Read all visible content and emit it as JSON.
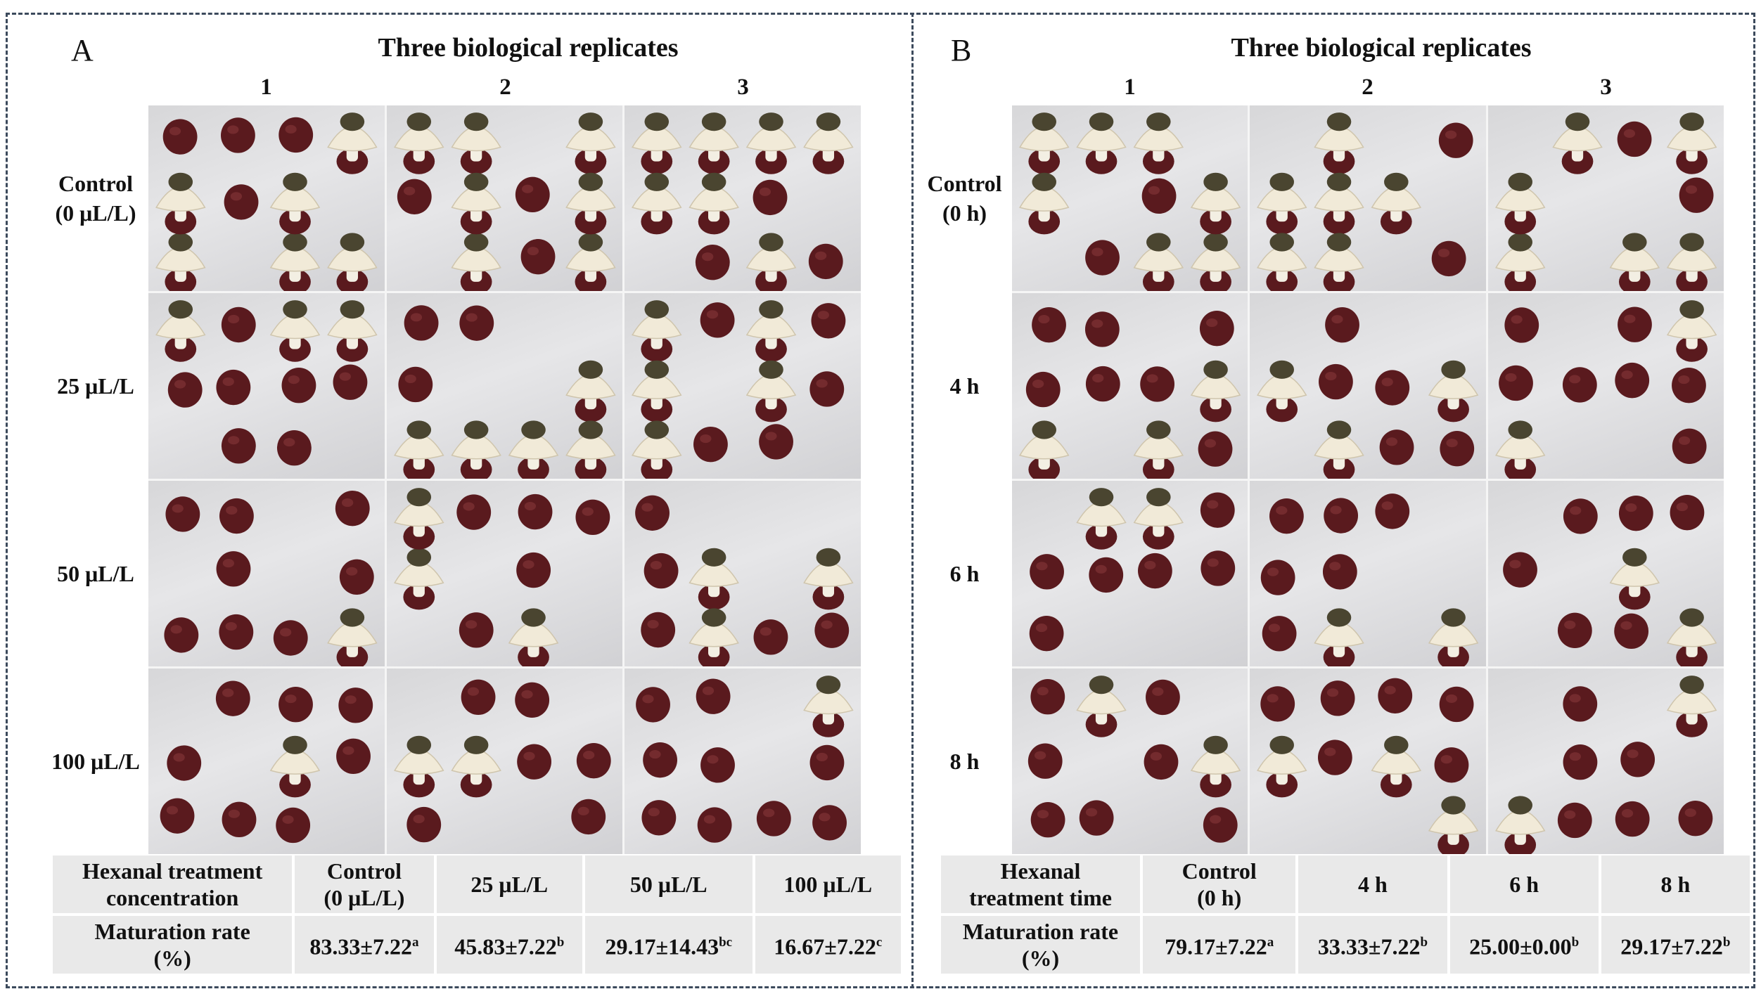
{
  "panel_a": {
    "letter": "A",
    "heading": "Three biological replicates",
    "replicates": [
      "1",
      "2",
      "3"
    ],
    "row_labels": [
      {
        "line1": "Control",
        "line2": "(0 μL/L)"
      },
      {
        "line1": "25 μL/L",
        "line2": ""
      },
      {
        "line1": "50 μL/L",
        "line2": ""
      },
      {
        "line1": "100 μL/L",
        "line2": ""
      }
    ],
    "table": {
      "header_label_line1": "Hexanal treatment",
      "header_label_line2": "concentration",
      "headers": [
        {
          "line1": "Control",
          "line2": "(0 μL/L)"
        },
        {
          "line1": "25 μL/L",
          "line2": ""
        },
        {
          "line1": "50 μL/L",
          "line2": ""
        },
        {
          "line1": "100 μL/L",
          "line2": ""
        }
      ],
      "rate_label_line1": "Maturation rate",
      "rate_label_line2": "(%)",
      "values": [
        {
          "value": "83.33±7.22",
          "letter": "a"
        },
        {
          "value": "45.83±7.22",
          "letter": "b"
        },
        {
          "value": "29.17±14.43",
          "letter": "bc"
        },
        {
          "value": "16.67±7.22",
          "letter": "c"
        }
      ]
    }
  },
  "panel_b": {
    "letter": "B",
    "heading": "Three biological replicates",
    "replicates": [
      "1",
      "2",
      "3"
    ],
    "row_labels": [
      {
        "line1": "Control",
        "line2": "(0 h)"
      },
      {
        "line1": "4 h",
        "line2": ""
      },
      {
        "line1": "6 h",
        "line2": ""
      },
      {
        "line1": "8 h",
        "line2": ""
      }
    ],
    "table": {
      "header_label_line1": "Hexanal",
      "header_label_line2": "treatment time",
      "headers": [
        {
          "line1": "Control",
          "line2": "(0 h)"
        },
        {
          "line1": "4 h",
          "line2": ""
        },
        {
          "line1": "6 h",
          "line2": ""
        },
        {
          "line1": "8 h",
          "line2": ""
        }
      ],
      "rate_label_line1": "Maturation rate",
      "rate_label_line2": "(%)",
      "values": [
        {
          "value": "79.17±7.22",
          "letter": "a"
        },
        {
          "value": "33.33±7.22",
          "letter": "b"
        },
        {
          "value": "25.00±0.00",
          "letter": "b"
        },
        {
          "value": "29.17±7.22",
          "letter": "b"
        }
      ]
    }
  },
  "photo_grid": {
    "description_icons": [
      "egg-icon",
      "mushroom-icon"
    ],
    "colors": {
      "egg": "#5a1a1e",
      "egg_highlight": "#8a3a3c",
      "cap": "#4a4530",
      "veil": "#f1ead8",
      "stem": "#f3efe3",
      "background": "#dcdcde"
    },
    "panel_a_counts": [
      [
        {
          "eggs": 4,
          "mushrooms": 6
        },
        {
          "eggs": 3,
          "mushrooms": 7
        },
        {
          "eggs": 3,
          "mushrooms": 7
        }
      ],
      [
        {
          "eggs": 7,
          "mushrooms": 3
        },
        {
          "eggs": 3,
          "mushrooms": 5
        },
        {
          "eggs": 5,
          "mushrooms": 5
        }
      ],
      [
        {
          "eggs": 8,
          "mushrooms": 1
        },
        {
          "eggs": 5,
          "mushrooms": 3
        },
        {
          "eggs": 5,
          "mushrooms": 3
        }
      ],
      [
        {
          "eggs": 8,
          "mushrooms": 1
        },
        {
          "eggs": 6,
          "mushrooms": 2
        },
        {
          "eggs": 9,
          "mushrooms": 1
        }
      ]
    ],
    "panel_b_counts": [
      [
        {
          "eggs": 2,
          "mushrooms": 7
        },
        {
          "eggs": 2,
          "mushrooms": 6
        },
        {
          "eggs": 2,
          "mushrooms": 6
        }
      ],
      [
        {
          "eggs": 7,
          "mushrooms": 3
        },
        {
          "eggs": 5,
          "mushrooms": 3
        },
        {
          "eggs": 7,
          "mushrooms": 2
        }
      ],
      [
        {
          "eggs": 6,
          "mushrooms": 2
        },
        {
          "eggs": 6,
          "mushrooms": 2
        },
        {
          "eggs": 6,
          "mushrooms": 2
        }
      ],
      [
        {
          "eggs": 7,
          "mushrooms": 2
        },
        {
          "eggs": 6,
          "mushrooms": 3
        },
        {
          "eggs": 6,
          "mushrooms": 2
        }
      ]
    ]
  }
}
